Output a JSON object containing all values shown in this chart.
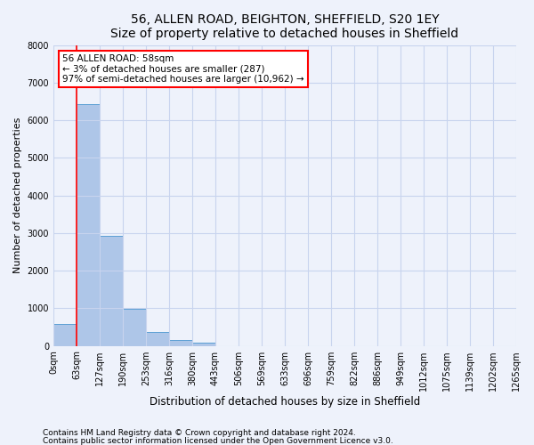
{
  "title1": "56, ALLEN ROAD, BEIGHTON, SHEFFIELD, S20 1EY",
  "title2": "Size of property relative to detached houses in Sheffield",
  "xlabel": "Distribution of detached houses by size in Sheffield",
  "ylabel": "Number of detached properties",
  "bin_labels": [
    "0sqm",
    "63sqm",
    "127sqm",
    "190sqm",
    "253sqm",
    "316sqm",
    "380sqm",
    "443sqm",
    "506sqm",
    "569sqm",
    "633sqm",
    "696sqm",
    "759sqm",
    "822sqm",
    "886sqm",
    "949sqm",
    "1012sqm",
    "1075sqm",
    "1139sqm",
    "1202sqm",
    "1265sqm"
  ],
  "bar_heights": [
    570,
    6430,
    2920,
    980,
    360,
    160,
    90,
    0,
    0,
    0,
    0,
    0,
    0,
    0,
    0,
    0,
    0,
    0,
    0,
    0
  ],
  "bar_color": "#aec6e8",
  "bar_edge_color": "#5a9fd4",
  "property_line_x": 1.0,
  "annotation_text": "56 ALLEN ROAD: 58sqm\n← 3% of detached houses are smaller (287)\n97% of semi-detached houses are larger (10,962) →",
  "annotation_box_color": "white",
  "annotation_box_edge_color": "red",
  "property_line_color": "red",
  "ylim": [
    0,
    8000
  ],
  "yticks": [
    0,
    1000,
    2000,
    3000,
    4000,
    5000,
    6000,
    7000,
    8000
  ],
  "background_color": "#eef2fb",
  "grid_color": "#c8d4ee",
  "footer1": "Contains HM Land Registry data © Crown copyright and database right 2024.",
  "footer2": "Contains public sector information licensed under the Open Government Licence v3.0.",
  "title1_fontsize": 10,
  "title2_fontsize": 9,
  "xlabel_fontsize": 8.5,
  "ylabel_fontsize": 8,
  "tick_fontsize": 7,
  "annotation_fontsize": 7.5,
  "footer_fontsize": 6.5
}
